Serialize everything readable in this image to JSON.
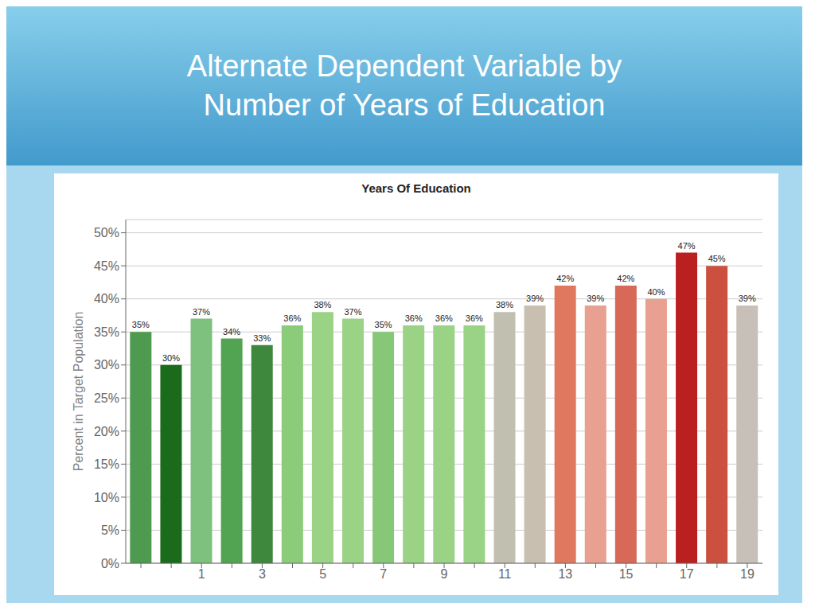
{
  "chart_data": {
    "type": "bar",
    "title": "Alternate Dependent Variable by\nNumber of Years of Education",
    "subtitle": "Years Of Education",
    "ylabel": "Percent in Target Population",
    "categories": [
      null,
      null,
      "1",
      null,
      "3",
      null,
      "5",
      null,
      "7",
      null,
      "9",
      null,
      "11",
      null,
      "13",
      null,
      "15",
      null,
      "17",
      null,
      "19"
    ],
    "values": [
      35,
      30,
      37,
      34,
      33,
      36,
      38,
      37,
      35,
      36,
      36,
      36,
      38,
      39,
      42,
      39,
      42,
      40,
      47,
      45,
      39
    ],
    "value_labels": [
      "35%",
      "30%",
      "37%",
      "34%",
      "33%",
      "36%",
      "38%",
      "37%",
      "35%",
      "36%",
      "36%",
      "36%",
      "38%",
      "39%",
      "42%",
      "39%",
      "42%",
      "40%",
      "47%",
      "45%",
      "39%"
    ],
    "colors": [
      "#4e9a4e",
      "#1a6b1a",
      "#7ec07e",
      "#52a452",
      "#3d883d",
      "#8acc7a",
      "#9ad286",
      "#9ad286",
      "#86c878",
      "#9ad286",
      "#9ad286",
      "#9ad286",
      "#c0bfb0",
      "#c8bfb0",
      "#e07860",
      "#e8a090",
      "#d86858",
      "#e8a090",
      "#bb2020",
      "#cc5040",
      "#c8c0b8"
    ],
    "ylim": [
      0,
      52
    ],
    "yticks": [
      {
        "value": 0,
        "label": "0%"
      },
      {
        "value": 5,
        "label": "5%"
      },
      {
        "value": 10,
        "label": "10%"
      },
      {
        "value": 15,
        "label": "15%"
      },
      {
        "value": 20,
        "label": "20%"
      },
      {
        "value": 25,
        "label": "25%"
      },
      {
        "value": 30,
        "label": "30%"
      },
      {
        "value": 35,
        "label": "35%"
      },
      {
        "value": 40,
        "label": "40%"
      },
      {
        "value": 45,
        "label": "45%"
      },
      {
        "value": 50,
        "label": "50%"
      }
    ],
    "grid": true,
    "data_labels": true
  }
}
